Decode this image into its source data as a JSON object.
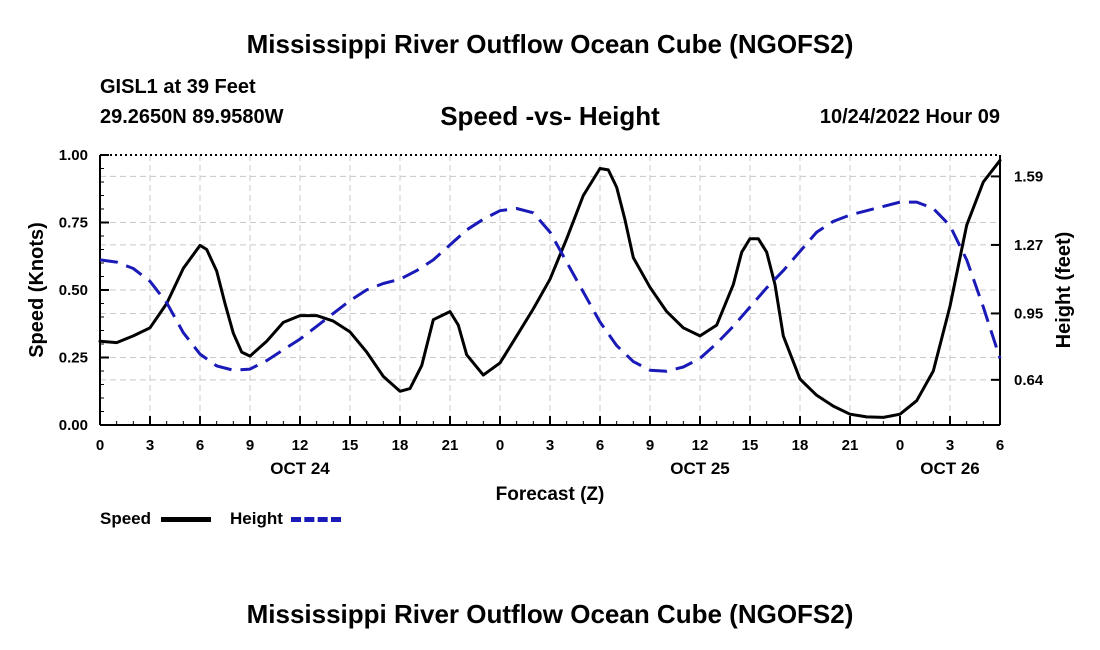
{
  "header": {
    "title": "Mississippi River Outflow Ocean Cube (NGOFS2)",
    "station": "GISL1 at 39 Feet",
    "coords": "29.2650N  89.9580W",
    "subtitle": "Speed -vs- Height",
    "datetime": "10/24/2022 Hour 09"
  },
  "footer": {
    "title": "Mississippi River Outflow Ocean Cube (NGOFS2)"
  },
  "legend": {
    "speed_label": "Speed",
    "height_label": "Height"
  },
  "chart_data": {
    "type": "line",
    "xlabel": "Forecast (Z)",
    "ylabel": "Speed (Knots)",
    "y2label": "Height (feet)",
    "xlim": [
      0,
      54
    ],
    "ylim": [
      0,
      1.0
    ],
    "y2lim": [
      0.429,
      1.69
    ],
    "x_ticks": [
      0,
      3,
      6,
      9,
      12,
      15,
      18,
      21,
      24,
      27,
      30,
      33,
      36,
      39,
      42,
      45,
      48,
      51,
      54
    ],
    "x_tick_labels": [
      "0",
      "3",
      "6",
      "9",
      "12",
      "15",
      "18",
      "21",
      "0",
      "3",
      "6",
      "9",
      "12",
      "15",
      "18",
      "21",
      "0",
      "3",
      "6"
    ],
    "date_labels": [
      {
        "x": 12,
        "label": "OCT 24"
      },
      {
        "x": 36,
        "label": "OCT 25"
      },
      {
        "x": 51,
        "label": "OCT 26"
      }
    ],
    "y_ticks": [
      0,
      0.25,
      0.5,
      0.75,
      1.0
    ],
    "y_tick_labels": [
      "0.00",
      "0.25",
      "0.50",
      "0.75",
      "1.00"
    ],
    "y2_ticks": [
      0.64,
      0.95,
      1.27,
      1.59
    ],
    "y2_tick_labels": [
      "0.64",
      "0.95",
      "1.27",
      "1.59"
    ],
    "series": [
      {
        "name": "Speed",
        "axis": "left",
        "color": "#000000",
        "style": "solid",
        "x": [
          0,
          1,
          2,
          3,
          4,
          5,
          6,
          6.4,
          7,
          7.5,
          8,
          8.5,
          9,
          10,
          11,
          12,
          13,
          14,
          15,
          16,
          17,
          18,
          18.6,
          19.3,
          20,
          21,
          21.5,
          22,
          23,
          24,
          25,
          26,
          27,
          28,
          29,
          30,
          30.5,
          31,
          31.5,
          32,
          33,
          34,
          35,
          36,
          37,
          38,
          38.5,
          39,
          39.5,
          40,
          40.5,
          41,
          42,
          43,
          44,
          45,
          46,
          47,
          48,
          49,
          50,
          51,
          52,
          53,
          54
        ],
        "y": [
          0.31,
          0.305,
          0.33,
          0.36,
          0.45,
          0.58,
          0.665,
          0.65,
          0.57,
          0.45,
          0.34,
          0.27,
          0.255,
          0.31,
          0.38,
          0.405,
          0.405,
          0.385,
          0.345,
          0.27,
          0.18,
          0.125,
          0.135,
          0.22,
          0.39,
          0.42,
          0.37,
          0.26,
          0.185,
          0.23,
          0.33,
          0.43,
          0.54,
          0.69,
          0.85,
          0.95,
          0.945,
          0.88,
          0.76,
          0.62,
          0.51,
          0.42,
          0.36,
          0.33,
          0.37,
          0.52,
          0.64,
          0.69,
          0.69,
          0.64,
          0.52,
          0.33,
          0.17,
          0.11,
          0.07,
          0.04,
          0.03,
          0.028,
          0.04,
          0.09,
          0.2,
          0.44,
          0.74,
          0.9,
          0.98
        ]
      },
      {
        "name": "Height",
        "axis": "right",
        "color": "#1a1ab8",
        "style": "dashed",
        "x": [
          0,
          1,
          2,
          3,
          4,
          5,
          6,
          7,
          8,
          9,
          10,
          11,
          12,
          13,
          14,
          15,
          16,
          17,
          18,
          19,
          20,
          21,
          22,
          23,
          24,
          25,
          26,
          27,
          28,
          29,
          30,
          31,
          32,
          33,
          34,
          35,
          36,
          37,
          38,
          39,
          40,
          41,
          42,
          43,
          44,
          45,
          46,
          47,
          48,
          49,
          50,
          51,
          52,
          53,
          54
        ],
        "y": [
          1.2,
          1.19,
          1.16,
          1.1,
          1.0,
          0.86,
          0.76,
          0.705,
          0.685,
          0.69,
          0.73,
          0.78,
          0.83,
          0.89,
          0.95,
          1.01,
          1.06,
          1.09,
          1.11,
          1.15,
          1.2,
          1.27,
          1.34,
          1.39,
          1.43,
          1.44,
          1.42,
          1.33,
          1.19,
          1.05,
          0.91,
          0.8,
          0.725,
          0.685,
          0.68,
          0.7,
          0.74,
          0.81,
          0.89,
          0.98,
          1.07,
          1.15,
          1.24,
          1.33,
          1.38,
          1.41,
          1.43,
          1.45,
          1.47,
          1.47,
          1.44,
          1.36,
          1.2,
          0.98,
          0.74
        ]
      }
    ]
  }
}
